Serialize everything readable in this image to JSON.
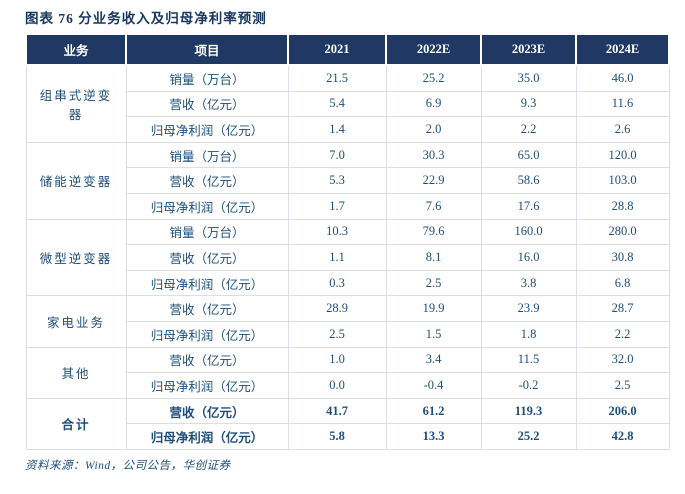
{
  "title": "图表 76   分业务收入及归母净利率预测",
  "source": "资料来源：Wind，公司公告，华创证券",
  "colors": {
    "header_bg": "#1F3864",
    "header_text": "#FFFFFF",
    "cell_text": "#1F4E79",
    "title_text": "#17375E",
    "grid_line": "#D9DEE8"
  },
  "table": {
    "headers": [
      "业务",
      "项目",
      "2021",
      "2022E",
      "2023E",
      "2024E"
    ],
    "groups": [
      {
        "business": "组串式逆变器",
        "bold": false,
        "rows": [
          {
            "item": "销量（万台）",
            "values": [
              "21.5",
              "25.2",
              "35.0",
              "46.0"
            ]
          },
          {
            "item": "营收（亿元）",
            "values": [
              "5.4",
              "6.9",
              "9.3",
              "11.6"
            ]
          },
          {
            "item": "归母净利润（亿元）",
            "values": [
              "1.4",
              "2.0",
              "2.2",
              "2.6"
            ]
          }
        ]
      },
      {
        "business": "储能逆变器",
        "bold": false,
        "rows": [
          {
            "item": "销量（万台）",
            "values": [
              "7.0",
              "30.3",
              "65.0",
              "120.0"
            ]
          },
          {
            "item": "营收（亿元）",
            "values": [
              "5.3",
              "22.9",
              "58.6",
              "103.0"
            ]
          },
          {
            "item": "归母净利润（亿元）",
            "values": [
              "1.7",
              "7.6",
              "17.6",
              "28.8"
            ]
          }
        ]
      },
      {
        "business": "微型逆变器",
        "bold": false,
        "rows": [
          {
            "item": "销量（万台）",
            "values": [
              "10.3",
              "79.6",
              "160.0",
              "280.0"
            ]
          },
          {
            "item": "营收（亿元）",
            "values": [
              "1.1",
              "8.1",
              "16.0",
              "30.8"
            ]
          },
          {
            "item": "归母净利润（亿元）",
            "values": [
              "0.3",
              "2.5",
              "3.8",
              "6.8"
            ]
          }
        ]
      },
      {
        "business": "家电业务",
        "bold": false,
        "rows": [
          {
            "item": "营收（亿元）",
            "values": [
              "28.9",
              "19.9",
              "23.9",
              "28.7"
            ]
          },
          {
            "item": "归母净利润（亿元）",
            "values": [
              "2.5",
              "1.5",
              "1.8",
              "2.2"
            ]
          }
        ]
      },
      {
        "business": "其他",
        "bold": false,
        "rows": [
          {
            "item": "营收（亿元）",
            "values": [
              "1.0",
              "3.4",
              "11.5",
              "32.0"
            ]
          },
          {
            "item": "归母净利润（亿元）",
            "values": [
              "0.0",
              "-0.4",
              "-0.2",
              "2.5"
            ]
          }
        ]
      },
      {
        "business": "合计",
        "bold": true,
        "rows": [
          {
            "item": "营收（亿元）",
            "values": [
              "41.7",
              "61.2",
              "119.3",
              "206.0"
            ]
          },
          {
            "item": "归母净利润（亿元）",
            "values": [
              "5.8",
              "13.3",
              "25.2",
              "42.8"
            ]
          }
        ]
      }
    ]
  },
  "chart_data": {
    "type": "table",
    "columns": [
      "业务",
      "项目",
      "2021",
      "2022E",
      "2023E",
      "2024E"
    ],
    "rows": [
      [
        "组串式逆变器",
        "销量（万台）",
        "21.5",
        "25.2",
        "35.0",
        "46.0"
      ],
      [
        "组串式逆变器",
        "营收（亿元）",
        "5.4",
        "6.9",
        "9.3",
        "11.6"
      ],
      [
        "组串式逆变器",
        "归母净利润（亿元）",
        "1.4",
        "2.0",
        "2.2",
        "2.6"
      ],
      [
        "储能逆变器",
        "销量（万台）",
        "7.0",
        "30.3",
        "65.0",
        "120.0"
      ],
      [
        "储能逆变器",
        "营收（亿元）",
        "5.3",
        "22.9",
        "58.6",
        "103.0"
      ],
      [
        "储能逆变器",
        "归母净利润（亿元）",
        "1.7",
        "7.6",
        "17.6",
        "28.8"
      ],
      [
        "微型逆变器",
        "销量（万台）",
        "10.3",
        "79.6",
        "160.0",
        "280.0"
      ],
      [
        "微型逆变器",
        "营收（亿元）",
        "1.1",
        "8.1",
        "16.0",
        "30.8"
      ],
      [
        "微型逆变器",
        "归母净利润（亿元）",
        "0.3",
        "2.5",
        "3.8",
        "6.8"
      ],
      [
        "家电业务",
        "营收（亿元）",
        "28.9",
        "19.9",
        "23.9",
        "28.7"
      ],
      [
        "家电业务",
        "归母净利润（亿元）",
        "2.5",
        "1.5",
        "1.8",
        "2.2"
      ],
      [
        "其他",
        "营收（亿元）",
        "1.0",
        "3.4",
        "11.5",
        "32.0"
      ],
      [
        "其他",
        "归母净利润（亿元）",
        "0.0",
        "-0.4",
        "-0.2",
        "2.5"
      ],
      [
        "合计",
        "营收（亿元）",
        "41.7",
        "61.2",
        "119.3",
        "206.0"
      ],
      [
        "合计",
        "归母净利润（亿元）",
        "5.8",
        "13.3",
        "25.2",
        "42.8"
      ]
    ],
    "title": "图表 76   分业务收入及归母净利率预测"
  }
}
